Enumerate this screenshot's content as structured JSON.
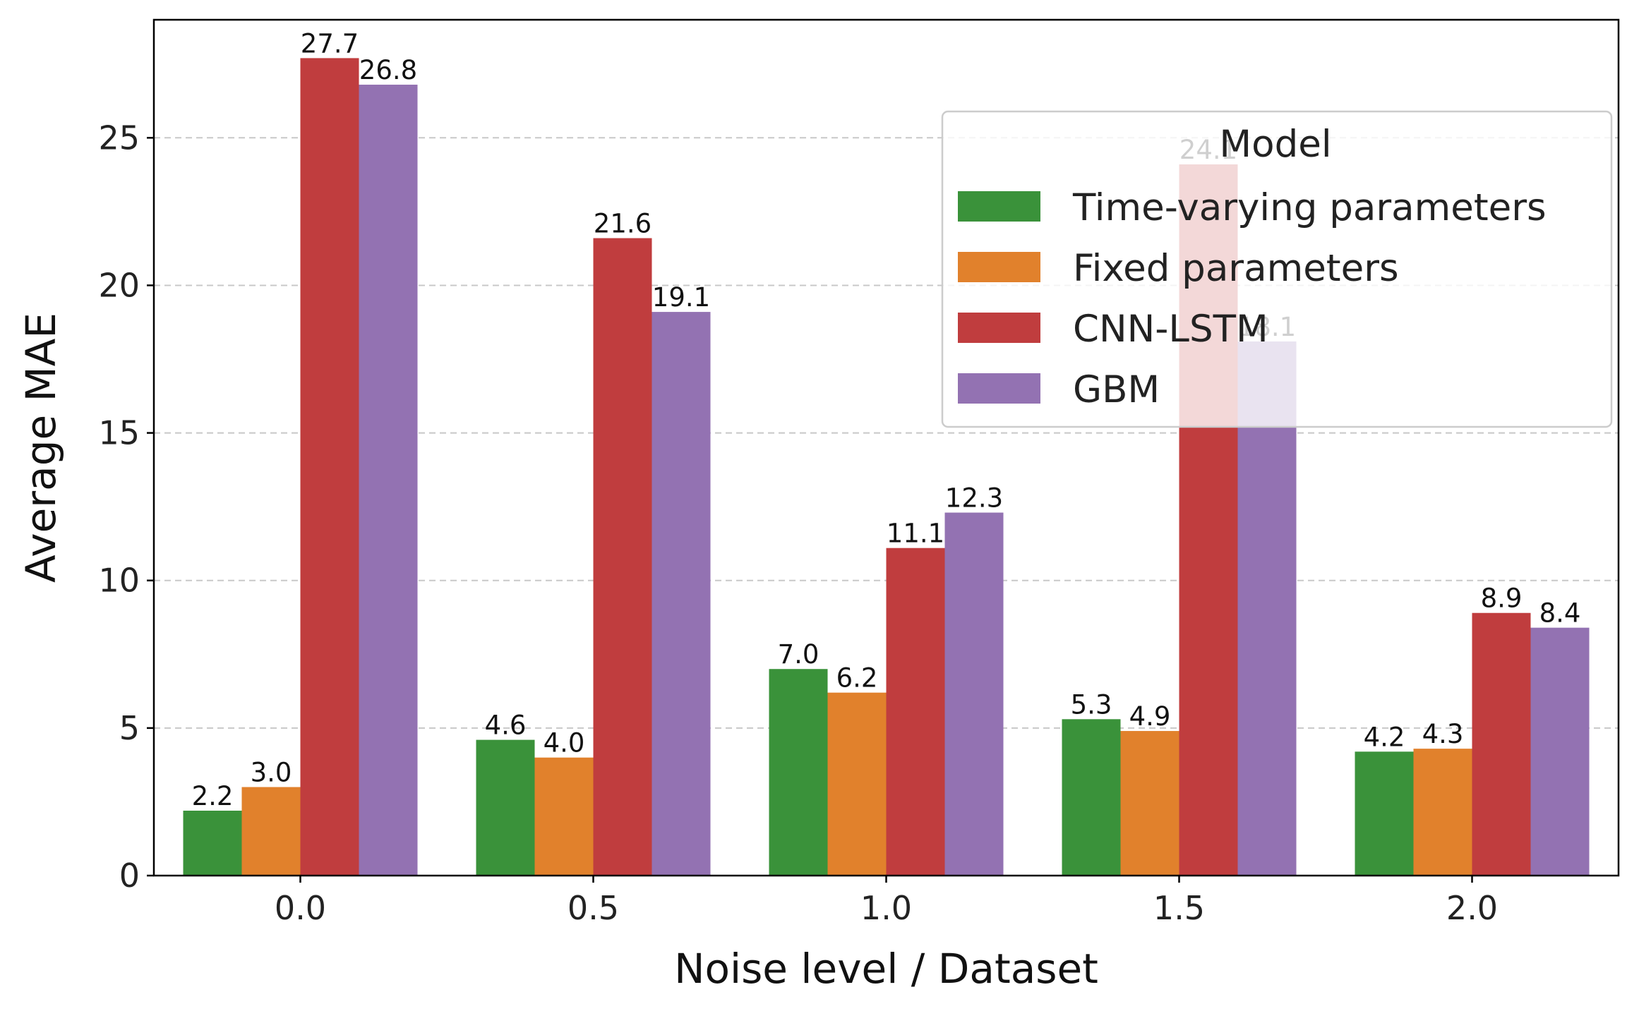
{
  "chart_data": {
    "type": "bar",
    "xlabel": "Noise level / Dataset",
    "ylabel": "Average MAE",
    "categories": [
      "0.0",
      "0.5",
      "1.0",
      "1.5",
      "2.0"
    ],
    "ylim": [
      0,
      29.0
    ],
    "yticks": [
      0,
      5,
      10,
      15,
      20,
      25
    ],
    "grid": "horizontal dashed",
    "legend": {
      "title": "Model",
      "position": "upper-right"
    },
    "series": [
      {
        "name": "Time-varying parameters",
        "color": "#3a923a",
        "values": [
          2.2,
          4.6,
          7.0,
          5.3,
          4.2
        ],
        "labels": [
          "2.2",
          "4.6",
          "7.0",
          "5.3",
          "4.2"
        ]
      },
      {
        "name": "Fixed parameters",
        "color": "#e1812c",
        "values": [
          3.0,
          4.0,
          6.2,
          4.9,
          4.3
        ],
        "labels": [
          "3.0",
          "4.0",
          "6.2",
          "4.9",
          "4.3"
        ]
      },
      {
        "name": "CNN-LSTM",
        "color": "#c03d3e",
        "values": [
          27.7,
          21.6,
          11.1,
          24.1,
          8.9
        ],
        "labels": [
          "27.7",
          "21.6",
          "11.1",
          "24.1",
          "8.9"
        ]
      },
      {
        "name": "GBM",
        "color": "#9372b2",
        "values": [
          26.8,
          19.1,
          12.3,
          18.1,
          8.4
        ],
        "labels": [
          "26.8",
          "19.1",
          "12.3",
          "18.1",
          "8.4"
        ]
      }
    ]
  }
}
